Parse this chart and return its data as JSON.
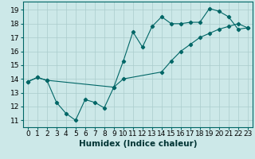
{
  "xlabel": "Humidex (Indice chaleur)",
  "bg_color": "#cce8e8",
  "grid_color": "#aacccc",
  "line_color": "#006666",
  "xlim": [
    -0.5,
    23.5
  ],
  "ylim": [
    10.5,
    19.6
  ],
  "xticks": [
    0,
    1,
    2,
    3,
    4,
    5,
    6,
    7,
    8,
    9,
    10,
    11,
    12,
    13,
    14,
    15,
    16,
    17,
    18,
    19,
    20,
    21,
    22,
    23
  ],
  "yticks": [
    11,
    12,
    13,
    14,
    15,
    16,
    17,
    18,
    19
  ],
  "series1_x": [
    0,
    1,
    2,
    3,
    4,
    5,
    6,
    7,
    8,
    9,
    10,
    11,
    12,
    13,
    14,
    15,
    16,
    17,
    18,
    19,
    20,
    21,
    22,
    23
  ],
  "series1_y": [
    13.8,
    14.1,
    13.9,
    12.3,
    11.5,
    11.0,
    12.5,
    12.3,
    11.9,
    13.4,
    15.3,
    17.4,
    16.3,
    17.8,
    18.5,
    18.0,
    18.0,
    18.1,
    18.1,
    19.1,
    18.9,
    18.5,
    17.6,
    17.7
  ],
  "series2_x": [
    0,
    1,
    2,
    9,
    10,
    14,
    15,
    16,
    17,
    18,
    19,
    20,
    21,
    22,
    23
  ],
  "series2_y": [
    13.8,
    14.1,
    13.9,
    13.4,
    14.0,
    14.5,
    15.3,
    16.0,
    16.5,
    17.0,
    17.3,
    17.6,
    17.8,
    18.0,
    17.7
  ],
  "label_fontsize": 7.5,
  "tick_fontsize": 6.5
}
